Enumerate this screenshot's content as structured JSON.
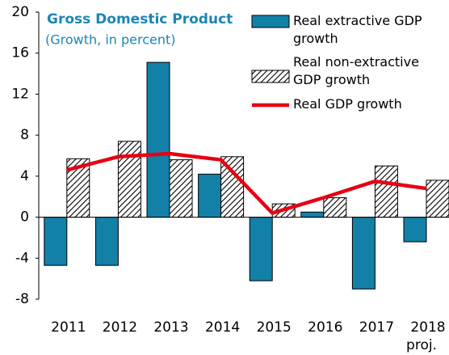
{
  "chart_data": {
    "type": "bar",
    "title": "Gross Domestic Product",
    "subtitle": "(Growth, in percent)",
    "annotation": "proj.",
    "categories": [
      "2011",
      "2012",
      "2013",
      "2014",
      "2015",
      "2016",
      "2017",
      "2018"
    ],
    "series": [
      {
        "name": "Real extractive GDP growth",
        "type": "bar",
        "color": "#1380a8",
        "values": [
          -4.7,
          -4.7,
          15.1,
          4.2,
          -6.2,
          0.5,
          -7.0,
          -2.4
        ]
      },
      {
        "name": "Real non-extractive GDP growth",
        "type": "bar",
        "color": "#000000",
        "hatch": true,
        "values": [
          5.7,
          7.4,
          5.6,
          5.9,
          1.3,
          1.9,
          5.0,
          3.6
        ]
      },
      {
        "name": "Real GDP growth",
        "type": "line",
        "color": "#e60012",
        "values": [
          4.6,
          5.9,
          6.2,
          5.6,
          0.4,
          1.9,
          3.5,
          2.8
        ]
      }
    ],
    "ylim": [
      -8,
      20
    ],
    "yticks": [
      -8,
      -4,
      0,
      4,
      8,
      12,
      16,
      20
    ]
  }
}
